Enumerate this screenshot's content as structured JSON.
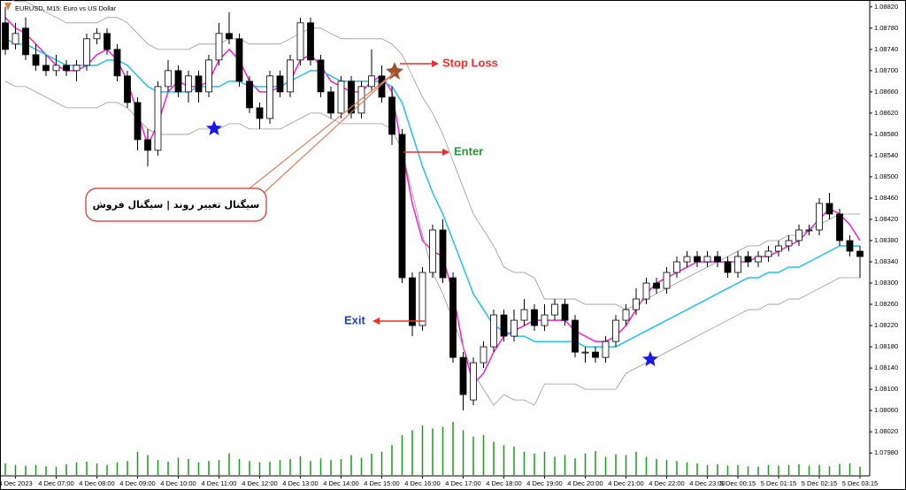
{
  "chart_data": {
    "type": "candlestick",
    "title": "EURUSD, M15: Euro vs US Dollar",
    "categories": [
      null,
      "4 Dec 2023",
      null,
      null,
      null,
      "4 Dec 07:00",
      null,
      null,
      null,
      "4 Dec 08:00",
      null,
      null,
      null,
      "4 Dec 09:00",
      null,
      null,
      null,
      "4 Dec 10:00",
      null,
      null,
      null,
      "4 Dec 11:00",
      null,
      null,
      null,
      "4 Dec 12:00",
      null,
      null,
      null,
      "4 Dec 13:00",
      null,
      null,
      null,
      "4 Dec 14:00",
      null,
      null,
      null,
      "4 Dec 15:00",
      null,
      null,
      null,
      "4 Dec 16:00",
      null,
      null,
      null,
      "4 Dec 17:00",
      null,
      null,
      null,
      "4 Dec 18:00",
      null,
      null,
      null,
      "4 Dec 19:00",
      null,
      null,
      null,
      "4 Dec 20:00",
      null,
      null,
      null,
      "4 Dec 21:00",
      null,
      null,
      null,
      "4 Dec 22:00",
      null,
      null,
      null,
      "4 Dec 23:00",
      null,
      null,
      "5 Dec 00:15",
      null,
      null,
      null,
      "5 Dec 01:15",
      null,
      null,
      null,
      "5 Dec 02:15",
      null,
      null,
      null,
      "5 Dec 03:15"
    ],
    "open": [
      1.0879,
      1.0875,
      1.0878,
      1.0873,
      1.0871,
      1.087,
      1.0871,
      1.087,
      1.0871,
      1.0876,
      1.0877,
      1.0874,
      1.0869,
      1.0864,
      1.0857,
      1.0855,
      1.0867,
      1.087,
      1.0866,
      1.0869,
      1.0866,
      1.0872,
      1.0877,
      1.0876,
      1.0868,
      1.0863,
      1.0861,
      1.0869,
      1.0866,
      1.0872,
      1.0879,
      1.0872,
      1.0866,
      1.0862,
      1.0868,
      1.0862,
      1.0867,
      1.0869,
      1.0865,
      1.0858,
      1.0831,
      1.0822,
      1.0832,
      1.084,
      1.0831,
      1.0816,
      1.0808,
      1.0815,
      1.0818,
      1.0824,
      1.082,
      1.0823,
      1.0825,
      1.0822,
      1.0824,
      1.0826,
      1.0823,
      1.0817,
      1.0817,
      1.0816,
      1.0819,
      1.0823,
      1.0825,
      1.0827,
      1.083,
      1.0829,
      1.0832,
      1.0834,
      1.0835,
      1.0834,
      1.0835,
      1.0834,
      1.0832,
      1.0835,
      1.0834,
      1.0835,
      1.0836,
      1.0837,
      1.0838,
      1.084,
      1.084,
      1.0845,
      1.0843,
      1.0838,
      1.0836
    ],
    "high": [
      1.0882,
      1.0879,
      1.088,
      1.0875,
      1.0873,
      1.0873,
      1.0872,
      1.0872,
      1.0877,
      1.0878,
      1.0878,
      1.0875,
      1.087,
      1.0865,
      1.0859,
      1.0868,
      1.0872,
      1.0871,
      1.087,
      1.087,
      1.0873,
      1.0879,
      1.0881,
      1.0877,
      1.0869,
      1.0864,
      1.087,
      1.087,
      1.0873,
      1.088,
      1.088,
      1.0873,
      1.0867,
      1.0869,
      1.0869,
      1.0868,
      1.0874,
      1.0871,
      1.0867,
      1.0859,
      1.0832,
      1.0833,
      1.0841,
      1.0842,
      1.0832,
      1.0817,
      1.0816,
      1.0819,
      1.0825,
      1.0825,
      1.0825,
      1.0827,
      1.0826,
      1.0826,
      1.0827,
      1.0827,
      1.0824,
      1.0818,
      1.0818,
      1.082,
      1.0824,
      1.0826,
      1.0829,
      1.0831,
      1.0831,
      1.0833,
      1.0835,
      1.0836,
      1.0836,
      1.0836,
      1.0836,
      1.0835,
      1.0836,
      1.0836,
      1.0836,
      1.0837,
      1.0838,
      1.0839,
      1.0841,
      1.0841,
      1.0846,
      1.0847,
      1.0844,
      1.0839,
      1.0837
    ],
    "low": [
      1.0873,
      1.0874,
      1.0872,
      1.087,
      1.0869,
      1.0869,
      1.0869,
      1.0868,
      1.087,
      1.0875,
      1.0873,
      1.0868,
      1.0863,
      1.0855,
      1.0852,
      1.0854,
      1.0866,
      1.0865,
      1.0864,
      1.0864,
      1.0865,
      1.0871,
      1.0875,
      1.0867,
      1.0862,
      1.0859,
      1.086,
      1.0865,
      1.0865,
      1.0871,
      1.0871,
      1.0865,
      1.0861,
      1.0861,
      1.0861,
      1.0861,
      1.0866,
      1.0864,
      1.0856,
      1.083,
      1.082,
      1.0821,
      1.0831,
      1.083,
      1.0815,
      1.0806,
      1.0807,
      1.0814,
      1.0817,
      1.0819,
      1.0819,
      1.0822,
      1.0821,
      1.0821,
      1.0823,
      1.0822,
      1.0816,
      1.0815,
      1.0815,
      1.0815,
      1.0818,
      1.0822,
      1.0824,
      1.0826,
      1.0828,
      1.0828,
      1.0831,
      1.0833,
      1.0833,
      1.0833,
      1.0833,
      1.0831,
      1.0831,
      1.0833,
      1.0833,
      1.0834,
      1.0835,
      1.0836,
      1.0837,
      1.0839,
      1.0839,
      1.0842,
      1.0837,
      1.0835,
      1.0831
    ],
    "close": [
      1.0874,
      1.0877,
      1.0873,
      1.0871,
      1.087,
      1.0871,
      1.087,
      1.0871,
      1.0876,
      1.0877,
      1.0874,
      1.0869,
      1.0864,
      1.0857,
      1.0855,
      1.0867,
      1.087,
      1.0866,
      1.0869,
      1.0866,
      1.0872,
      1.0877,
      1.0876,
      1.0868,
      1.0863,
      1.0861,
      1.0869,
      1.0866,
      1.0872,
      1.0879,
      1.0872,
      1.0866,
      1.0862,
      1.0868,
      1.0862,
      1.0867,
      1.0869,
      1.0865,
      1.0858,
      1.0831,
      1.0822,
      1.0832,
      1.084,
      1.0831,
      1.0816,
      1.0809,
      1.0815,
      1.0818,
      1.0824,
      1.082,
      1.0823,
      1.0825,
      1.0822,
      1.0824,
      1.0826,
      1.0823,
      1.0817,
      1.0817,
      1.0816,
      1.0819,
      1.0823,
      1.0825,
      1.0827,
      1.083,
      1.0829,
      1.0832,
      1.0834,
      1.0835,
      1.0834,
      1.0835,
      1.0834,
      1.0832,
      1.0835,
      1.0834,
      1.0835,
      1.0836,
      1.0837,
      1.0838,
      1.084,
      1.084,
      1.0845,
      1.0843,
      1.0838,
      1.0836,
      1.0835
    ],
    "up_color": "#ffffff",
    "down_color": "#000000",
    "lines": [
      {
        "color": "#ee22cc",
        "values": [
          1.088,
          1.0878,
          1.0877,
          1.0875,
          1.0873,
          1.0871,
          1.087,
          1.087,
          1.0871,
          1.0873,
          1.0874,
          1.0872,
          1.0868,
          1.0862,
          1.0856,
          1.086,
          1.0866,
          1.0868,
          1.0867,
          1.0867,
          1.0868,
          1.0872,
          1.0874,
          1.0872,
          1.0868,
          1.0866,
          1.0866,
          1.0867,
          1.0868,
          1.0872,
          1.0873,
          1.0871,
          1.0868,
          1.0867,
          1.0866,
          1.0866,
          1.0868,
          1.0869,
          1.0866,
          1.0855,
          1.0845,
          1.0838,
          1.0836,
          1.0835,
          1.0828,
          1.0818,
          1.0811,
          1.0813,
          1.0817,
          1.082,
          1.0821,
          1.0822,
          1.0823,
          1.0823,
          1.0823,
          1.0823,
          1.0821,
          1.082,
          1.0819,
          1.0819,
          1.082,
          1.0822,
          1.0825,
          1.0828,
          1.083,
          1.0831,
          1.0832,
          1.0833,
          1.0834,
          1.0834,
          1.0834,
          1.0834,
          1.0834,
          1.0834,
          1.0835,
          1.0835,
          1.0836,
          1.0837,
          1.0838,
          1.084,
          1.0842,
          1.0844,
          1.0843,
          1.0841,
          1.0838
        ]
      },
      {
        "color": "#22c0ee",
        "values": [
          1.0876,
          1.0875,
          1.0875,
          1.0874,
          1.0873,
          1.0872,
          1.0871,
          1.0871,
          1.0871,
          1.0871,
          1.0872,
          1.0872,
          1.0871,
          1.0869,
          1.0867,
          1.0866,
          1.0866,
          1.0866,
          1.0866,
          1.0867,
          1.0867,
          1.0867,
          1.0868,
          1.0868,
          1.0867,
          1.0867,
          1.0867,
          1.0867,
          1.0868,
          1.0869,
          1.087,
          1.087,
          1.0869,
          1.0868,
          1.0868,
          1.0868,
          1.0868,
          1.0868,
          1.0867,
          1.0864,
          1.0858,
          1.0852,
          1.0847,
          1.0843,
          1.0838,
          1.0833,
          1.0828,
          1.0825,
          1.0822,
          1.0821,
          1.082,
          1.082,
          1.0819,
          1.0819,
          1.0819,
          1.0819,
          1.0819,
          1.0818,
          1.0818,
          1.0818,
          1.0818,
          1.0819,
          1.082,
          1.0821,
          1.0822,
          1.0823,
          1.0824,
          1.0825,
          1.0826,
          1.0827,
          1.0828,
          1.0829,
          1.083,
          1.0831,
          1.0831,
          1.0832,
          1.0832,
          1.0833,
          1.0833,
          1.0834,
          1.0835,
          1.0836,
          1.0837,
          1.0837,
          1.0837
        ]
      },
      {
        "color": "#999999",
        "values": [
          1.0884,
          1.0883,
          1.0883,
          1.0882,
          1.0881,
          1.088,
          1.0879,
          1.0879,
          1.0879,
          1.0879,
          1.088,
          1.088,
          1.0879,
          1.0877,
          1.0875,
          1.0874,
          1.0874,
          1.0874,
          1.0874,
          1.0875,
          1.0875,
          1.0875,
          1.0876,
          1.0876,
          1.0875,
          1.0875,
          1.0875,
          1.0875,
          1.0876,
          1.0877,
          1.0878,
          1.0878,
          1.0877,
          1.0876,
          1.0876,
          1.0876,
          1.0876,
          1.0876,
          1.0875,
          1.0873,
          1.0869,
          1.0865,
          1.0862,
          1.0858,
          1.0853,
          1.0848,
          1.0843,
          1.084,
          1.0837,
          1.0833,
          1.0832,
          1.0832,
          1.0831,
          1.0827,
          1.0827,
          1.0827,
          1.0827,
          1.0826,
          1.0826,
          1.0826,
          1.0826,
          1.0825,
          1.0826,
          1.0827,
          1.0828,
          1.0829,
          1.083,
          1.0831,
          1.0832,
          1.0833,
          1.0834,
          1.0835,
          1.0836,
          1.0837,
          1.0837,
          1.0838,
          1.0838,
          1.0839,
          1.0839,
          1.084,
          1.0841,
          1.0842,
          1.0843,
          1.0843,
          1.0843
        ]
      },
      {
        "color": "#999999",
        "values": [
          1.0868,
          1.0867,
          1.0867,
          1.0866,
          1.0865,
          1.0864,
          1.0863,
          1.0863,
          1.0863,
          1.0863,
          1.0864,
          1.0864,
          1.0863,
          1.0861,
          1.0859,
          1.0858,
          1.0858,
          1.0858,
          1.0858,
          1.0859,
          1.0859,
          1.0859,
          1.086,
          1.086,
          1.0859,
          1.0859,
          1.0859,
          1.0859,
          1.086,
          1.0861,
          1.0862,
          1.0862,
          1.0861,
          1.086,
          1.086,
          1.086,
          1.086,
          1.086,
          1.0859,
          1.0855,
          1.0847,
          1.0839,
          1.0832,
          1.0828,
          1.0823,
          1.0818,
          1.0813,
          1.081,
          1.0807,
          1.0809,
          1.0808,
          1.0808,
          1.0807,
          1.0811,
          1.0811,
          1.0811,
          1.0811,
          1.081,
          1.081,
          1.081,
          1.081,
          1.0813,
          1.0814,
          1.0815,
          1.0816,
          1.0817,
          1.0818,
          1.0819,
          1.082,
          1.0821,
          1.0822,
          1.0823,
          1.0824,
          1.0825,
          1.0825,
          1.0826,
          1.0826,
          1.0827,
          1.0827,
          1.0828,
          1.0829,
          1.083,
          1.0831,
          1.0831,
          1.0831
        ]
      }
    ],
    "volume": [
      350,
      300,
      280,
      300,
      260,
      250,
      320,
      380,
      400,
      350,
      300,
      380,
      420,
      700,
      600,
      450,
      400,
      520,
      480,
      380,
      420,
      450,
      650,
      480,
      420,
      380,
      400,
      450,
      480,
      560,
      420,
      500,
      450,
      480,
      600,
      520,
      640,
      700,
      900,
      1200,
      1350,
      1500,
      1400,
      1450,
      1600,
      1350,
      1150,
      1200,
      1000,
      900,
      850,
      700,
      650,
      700,
      550,
      600,
      500,
      650,
      720,
      550,
      620,
      600,
      700,
      550,
      480,
      450,
      420,
      380,
      350,
      300,
      320,
      280,
      300,
      260,
      250,
      300,
      280,
      300,
      320,
      280,
      300,
      260,
      330,
      350,
      250
    ],
    "volume_color": "#1a9a1a",
    "ylim": [
      1.07937,
      1.08833
    ],
    "yticks": [
      {
        "value": 1.0882,
        "label": "1.08820"
      },
      {
        "value": 1.0878,
        "label": "1.08780"
      },
      {
        "value": 1.0874,
        "label": "1.08740"
      },
      {
        "value": 1.087,
        "label": "1.08700"
      },
      {
        "value": 1.0866,
        "label": "1.08660"
      },
      {
        "value": 1.0862,
        "label": "1.08620"
      },
      {
        "value": 1.0858,
        "label": "1.08580"
      },
      {
        "value": 1.0854,
        "label": "1.08540"
      },
      {
        "value": 1.085,
        "label": "1.08500"
      },
      {
        "value": 1.0846,
        "label": "1.08460"
      },
      {
        "value": 1.0842,
        "label": "1.08420"
      },
      {
        "value": 1.0838,
        "label": "1.08380"
      },
      {
        "value": 1.0834,
        "label": "1.08340"
      },
      {
        "value": 1.083,
        "label": "1.08300"
      },
      {
        "value": 1.0826,
        "label": "1.08260"
      },
      {
        "value": 1.0822,
        "label": "1.08220"
      },
      {
        "value": 1.0818,
        "label": "1.08180"
      },
      {
        "value": 1.0814,
        "label": "1.08140"
      },
      {
        "value": 1.081,
        "label": "1.08100"
      },
      {
        "value": 1.0806,
        "label": "1.08060"
      },
      {
        "value": 1.0802,
        "label": "1.08020"
      },
      {
        "value": 1.0798,
        "label": "1.07980"
      }
    ],
    "grid": false,
    "annotations": [
      "Stop Loss",
      "Enter",
      "Exit",
      "سیگنال تغییر روند | سیگنال فروش"
    ]
  }
}
